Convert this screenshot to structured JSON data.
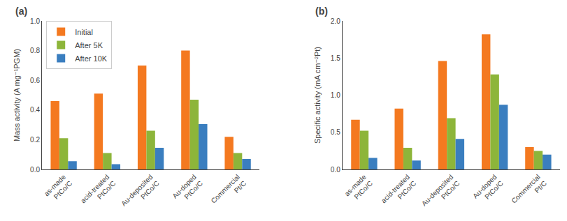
{
  "chart_data": [
    {
      "type": "bar",
      "title": "(a)",
      "y_label": "Mass activity (A mg⁻¹PGM)",
      "categories": [
        "as-made\nPtCo/C",
        "acid-treated\nPtCo/C",
        "Au-deposited\nPtCo/C",
        "Au-doped\nPtCo/C",
        "Commercial\nPt/C"
      ],
      "series": [
        {
          "name": "Initial",
          "color": "#f47920",
          "values": [
            0.46,
            0.51,
            0.7,
            0.8,
            0.22
          ]
        },
        {
          "name": "After 5K",
          "color": "#8db53a",
          "values": [
            0.21,
            0.11,
            0.26,
            0.47,
            0.11
          ]
        },
        {
          "name": "After 10K",
          "color": "#3a7ebf",
          "values": [
            0.055,
            0.035,
            0.145,
            0.305,
            0.07
          ]
        }
      ],
      "ylim": [
        0,
        1.0
      ],
      "yticks": [
        {
          "value": 0,
          "label": "0.0"
        },
        0.2,
        0.4,
        0.6,
        0.8,
        {
          "value": 1,
          "label": "1.0"
        }
      ],
      "grid": false,
      "legend": "upper left"
    },
    {
      "type": "bar",
      "title": "(b)",
      "y_label": "Specific activity (mA cm⁻²Pt)",
      "categories": [
        "as-made\nPtCo/C",
        "acid-treated\nPtCo/C",
        "Au-deposited\nPtCo/C",
        "Au-doped\nPtCo/C",
        "Commercial\nPt/C"
      ],
      "series": [
        {
          "name": "Initial",
          "color": "#f47920",
          "values": [
            0.67,
            0.82,
            1.46,
            1.82,
            0.3
          ]
        },
        {
          "name": "After 5K",
          "color": "#8db53a",
          "values": [
            0.52,
            0.29,
            0.69,
            1.28,
            0.25
          ]
        },
        {
          "name": "After 10K",
          "color": "#3a7ebf",
          "values": [
            0.155,
            0.12,
            0.41,
            0.87,
            0.2
          ]
        }
      ],
      "ylim": [
        0,
        2.0
      ],
      "yticks": [
        {
          "value": 0,
          "label": "0.0"
        },
        0.5,
        {
          "value": 1,
          "label": "1.0"
        },
        1.5,
        {
          "value": 2,
          "label": "2.0"
        }
      ],
      "grid": false
    }
  ]
}
